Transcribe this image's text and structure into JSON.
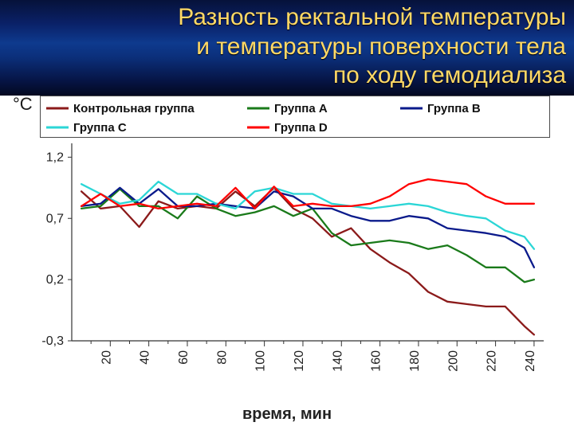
{
  "title": "Разность ректальной температуры\nи температуры поверхности тела\nпо ходу гемодиализа",
  "ylabel": "°С",
  "xlabel": "время, мин",
  "title_color": "#ffd966",
  "title_fontsize": 30,
  "chart": {
    "type": "line",
    "background_color": "#ffffff",
    "axis_color": "#333333",
    "xlim": [
      0,
      245
    ],
    "ylim": [
      -0.3,
      1.3
    ],
    "xticks": [
      20,
      40,
      60,
      80,
      100,
      120,
      140,
      160,
      180,
      200,
      220,
      240
    ],
    "xminor_between": 1,
    "yticks": [
      -0.3,
      0.2,
      0.7,
      1.2
    ],
    "line_width": 2.3,
    "legend": {
      "position": "top",
      "bg": "#ffffff",
      "border": "#4a4a4a",
      "font_size": 15,
      "font_weight": "bold",
      "items": [
        {
          "label": "Контрольная группа",
          "color": "#8b1a1a"
        },
        {
          "label": "Группа А",
          "color": "#1a7a1a"
        },
        {
          "label": "Группа В",
          "color": "#0a1a8b"
        },
        {
          "label": "Группа С",
          "color": "#2bd6d6"
        },
        {
          "label": "Группа D",
          "color": "#ff0000"
        }
      ]
    },
    "series": [
      {
        "name": "control",
        "color": "#8b1a1a",
        "x": [
          5,
          15,
          25,
          35,
          45,
          55,
          65,
          75,
          85,
          95,
          105,
          115,
          125,
          135,
          145,
          155,
          165,
          175,
          185,
          195,
          205,
          215,
          225,
          235,
          240
        ],
        "y": [
          0.92,
          0.78,
          0.8,
          0.63,
          0.84,
          0.78,
          0.8,
          0.78,
          0.92,
          0.8,
          0.95,
          0.78,
          0.7,
          0.55,
          0.62,
          0.45,
          0.34,
          0.25,
          0.1,
          0.02,
          0.0,
          -0.02,
          -0.02,
          -0.18,
          -0.25
        ]
      },
      {
        "name": "groupA",
        "color": "#1a7a1a",
        "x": [
          5,
          15,
          25,
          35,
          45,
          55,
          65,
          75,
          85,
          95,
          105,
          115,
          125,
          135,
          145,
          155,
          165,
          175,
          185,
          195,
          205,
          215,
          225,
          235,
          240
        ],
        "y": [
          0.78,
          0.8,
          0.94,
          0.8,
          0.8,
          0.7,
          0.88,
          0.78,
          0.72,
          0.75,
          0.8,
          0.72,
          0.78,
          0.58,
          0.48,
          0.5,
          0.52,
          0.5,
          0.45,
          0.48,
          0.4,
          0.3,
          0.3,
          0.18,
          0.2
        ]
      },
      {
        "name": "groupB",
        "color": "#0a1a8b",
        "x": [
          5,
          15,
          25,
          35,
          45,
          55,
          65,
          75,
          85,
          95,
          105,
          115,
          125,
          135,
          145,
          155,
          165,
          175,
          185,
          195,
          205,
          215,
          225,
          235,
          240
        ],
        "y": [
          0.8,
          0.82,
          0.95,
          0.82,
          0.94,
          0.8,
          0.8,
          0.82,
          0.8,
          0.78,
          0.92,
          0.88,
          0.78,
          0.78,
          0.72,
          0.68,
          0.68,
          0.72,
          0.7,
          0.62,
          0.6,
          0.58,
          0.55,
          0.46,
          0.3
        ]
      },
      {
        "name": "groupC",
        "color": "#2bd6d6",
        "x": [
          5,
          15,
          25,
          35,
          45,
          55,
          65,
          75,
          85,
          95,
          105,
          115,
          125,
          135,
          145,
          155,
          165,
          175,
          185,
          195,
          205,
          215,
          225,
          235,
          240
        ],
        "y": [
          0.98,
          0.9,
          0.82,
          0.85,
          1.0,
          0.9,
          0.9,
          0.82,
          0.78,
          0.92,
          0.95,
          0.9,
          0.9,
          0.82,
          0.8,
          0.78,
          0.8,
          0.82,
          0.8,
          0.75,
          0.72,
          0.7,
          0.6,
          0.55,
          0.45
        ]
      },
      {
        "name": "groupD",
        "color": "#ff0000",
        "x": [
          5,
          15,
          25,
          35,
          45,
          55,
          65,
          75,
          85,
          95,
          105,
          115,
          125,
          135,
          145,
          155,
          165,
          175,
          185,
          195,
          205,
          215,
          225,
          235,
          240
        ],
        "y": [
          0.8,
          0.9,
          0.8,
          0.82,
          0.78,
          0.8,
          0.82,
          0.8,
          0.95,
          0.78,
          0.96,
          0.8,
          0.82,
          0.8,
          0.8,
          0.82,
          0.88,
          0.98,
          1.02,
          1.0,
          0.98,
          0.88,
          0.82,
          0.82,
          0.82
        ]
      }
    ]
  }
}
